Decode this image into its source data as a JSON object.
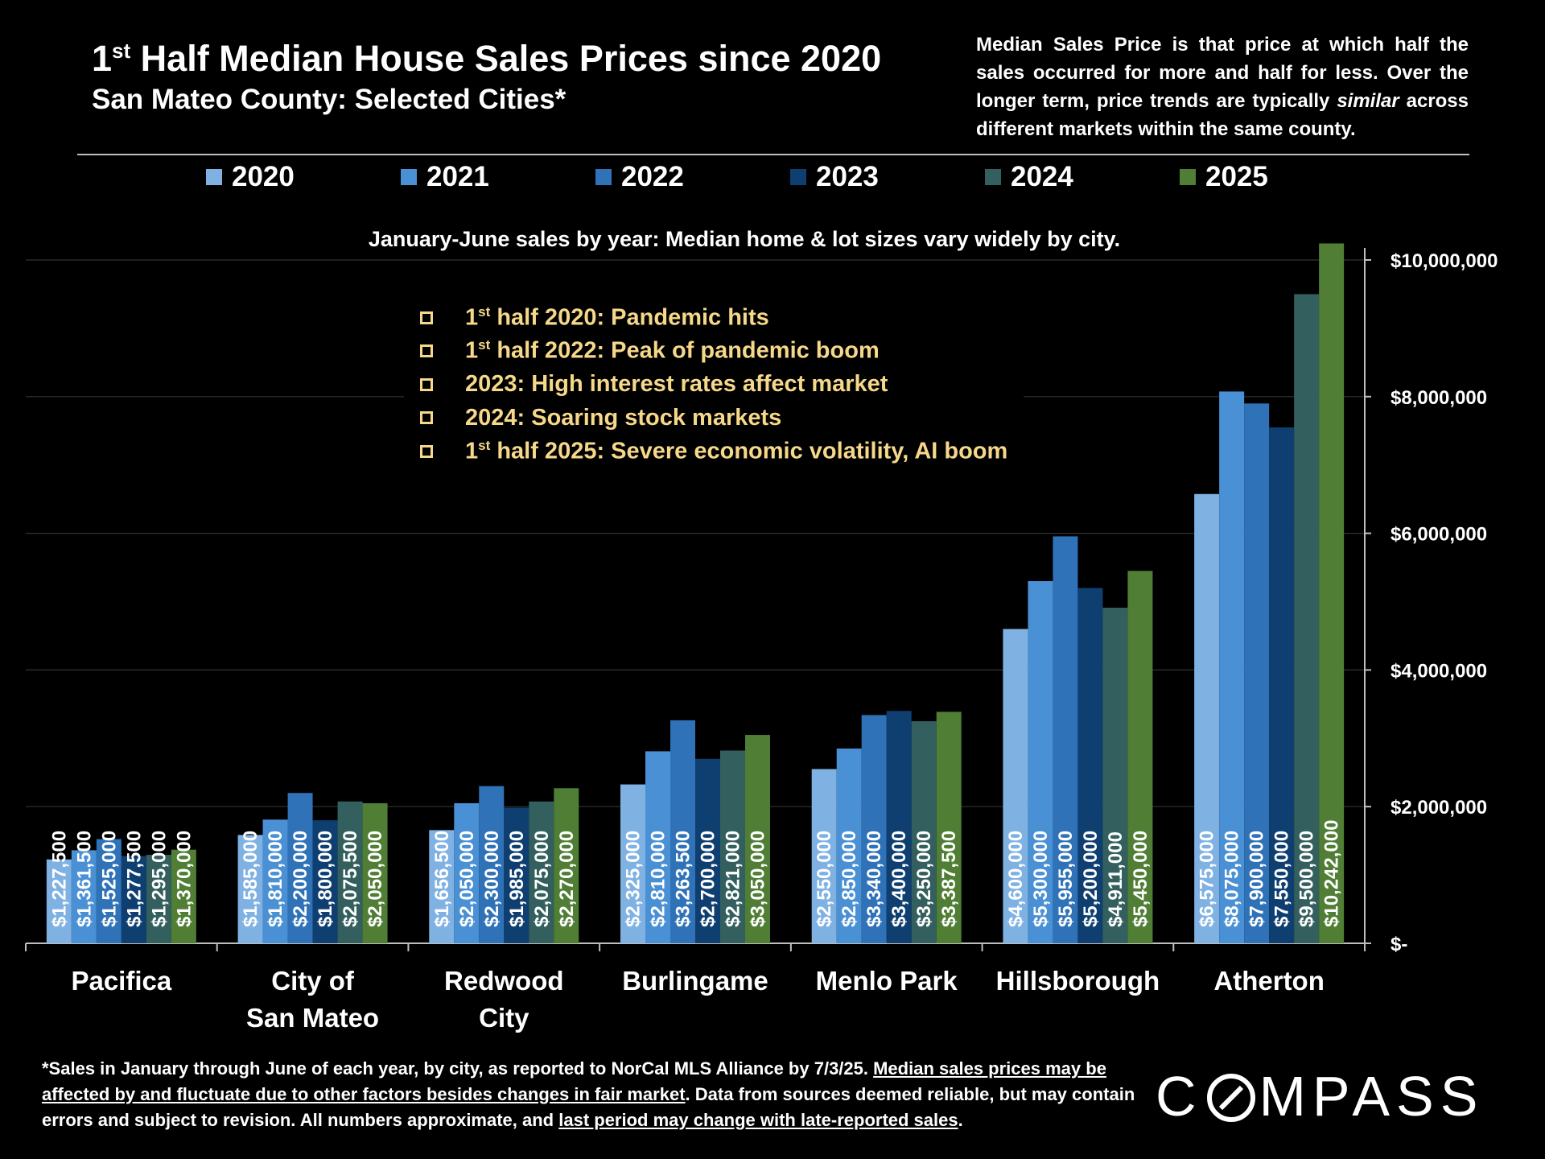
{
  "header": {
    "title_main": "Half Median House Sales Prices since 2020",
    "title_ordinal": "1",
    "title_sup": "st",
    "subtitle": "San Mateo County: Selected Cities*"
  },
  "definition": {
    "part1": "Median Sales Price is that price at which half the sales occurred for more and half for less. Over the longer term, price trends are typically ",
    "emphasis": "similar",
    "part2": " across different markets within the same county."
  },
  "chart_note": "January-June sales by year: Median home & lot sizes vary widely by city.",
  "events": [
    {
      "sup_prefix": "1",
      "sup": "st",
      "text": " half 2020: Pandemic hits"
    },
    {
      "sup_prefix": "1",
      "sup": "st",
      "text": " half 2022:  Peak of pandemic boom"
    },
    {
      "sup_prefix": "",
      "sup": "",
      "text": "2023:  High interest rates affect market"
    },
    {
      "sup_prefix": "",
      "sup": "",
      "text": "2024:  Soaring stock markets"
    },
    {
      "sup_prefix": "1",
      "sup": "st",
      "text": " half 2025:  Severe economic volatility, AI boom"
    }
  ],
  "footnote": {
    "p1": "*Sales in January through June of each year, by city, as reported to NorCal MLS Alliance by 7/3/25. ",
    "u1": "Median sales prices may be affected by and fluctuate due to other factors besides changes in fair market",
    "p2": ". Data from sources deemed reliable, but may contain errors and subject to revision. All numbers approximate, and ",
    "u2": "last period may change with late-reported sales",
    "p3": "."
  },
  "logo": {
    "before": "C",
    "after": "MPASS"
  },
  "colors": {
    "2020": "#7fb2e3",
    "2021": "#4a90d4",
    "2022": "#2f72b8",
    "2023": "#0f3f70",
    "2024": "#33605e",
    "2025": "#4f7e34",
    "events_text": "#f6d88a"
  },
  "chart_data": {
    "type": "bar",
    "categories": [
      [
        "Pacifica"
      ],
      [
        "City of",
        "San Mateo"
      ],
      [
        "Redwood",
        "City"
      ],
      [
        "Burlingame"
      ],
      [
        "Menlo Park"
      ],
      [
        "Hillsborough"
      ],
      [
        "Atherton"
      ]
    ],
    "series": [
      {
        "name": "2020",
        "values": [
          1227500,
          1585000,
          1656500,
          2325000,
          2550000,
          4600000,
          6575000
        ],
        "labels": [
          "$1,227,500",
          "$1,585,000",
          "$1,656,500",
          "$2,325,000",
          "$2,550,000",
          "$4,600,000",
          "$6,575,000"
        ]
      },
      {
        "name": "2021",
        "values": [
          1361500,
          1810000,
          2050000,
          2810000,
          2850000,
          5300000,
          8075000
        ],
        "labels": [
          "$1,361,500",
          "$1,810,000",
          "$2,050,000",
          "$2,810,000",
          "$2,850,000",
          "$5,300,000",
          "$8,075,000"
        ]
      },
      {
        "name": "2022",
        "values": [
          1525000,
          2200000,
          2300000,
          3263500,
          3340000,
          5955000,
          7900000
        ],
        "labels": [
          "$1,525,000",
          "$2,200,000",
          "$2,300,000",
          "$3,263,500",
          "$3,340,000",
          "$5,955,000",
          "$7,900,000"
        ]
      },
      {
        "name": "2023",
        "values": [
          1277500,
          1800000,
          1985000,
          2700000,
          3400000,
          5200000,
          7550000
        ],
        "labels": [
          "$1,277,500",
          "$1,800,000",
          "$1,985,000",
          "$2,700,000",
          "$3,400,000",
          "$5,200,000",
          "$7,550,000"
        ]
      },
      {
        "name": "2024",
        "values": [
          1295000,
          2075500,
          2075000,
          2821000,
          3250000,
          4911000,
          9500000
        ],
        "labels": [
          "$1,295,000",
          "$2,075,500",
          "$2,075,000",
          "$2,821,000",
          "$3,250,000",
          "$4,911,000",
          "$9,500,000"
        ]
      },
      {
        "name": "2025",
        "values": [
          1370000,
          2050000,
          2270000,
          3050000,
          3387500,
          5450000,
          10242000
        ],
        "labels": [
          "$1,370,000",
          "$2,050,000",
          "$2,270,000",
          "$3,050,000",
          "$3,387,500",
          "$5,450,000",
          "$10,242,000"
        ]
      }
    ],
    "yticks": [
      0,
      2000000,
      4000000,
      6000000,
      8000000,
      10000000
    ],
    "ytick_labels": [
      "$-",
      "$2,000,000",
      "$4,000,000",
      "$6,000,000",
      "$8,000,000",
      "$10,000,000"
    ],
    "ylim": [
      0,
      10000000
    ],
    "y_axis_side": "right",
    "grid": true,
    "legend_position": "top"
  }
}
